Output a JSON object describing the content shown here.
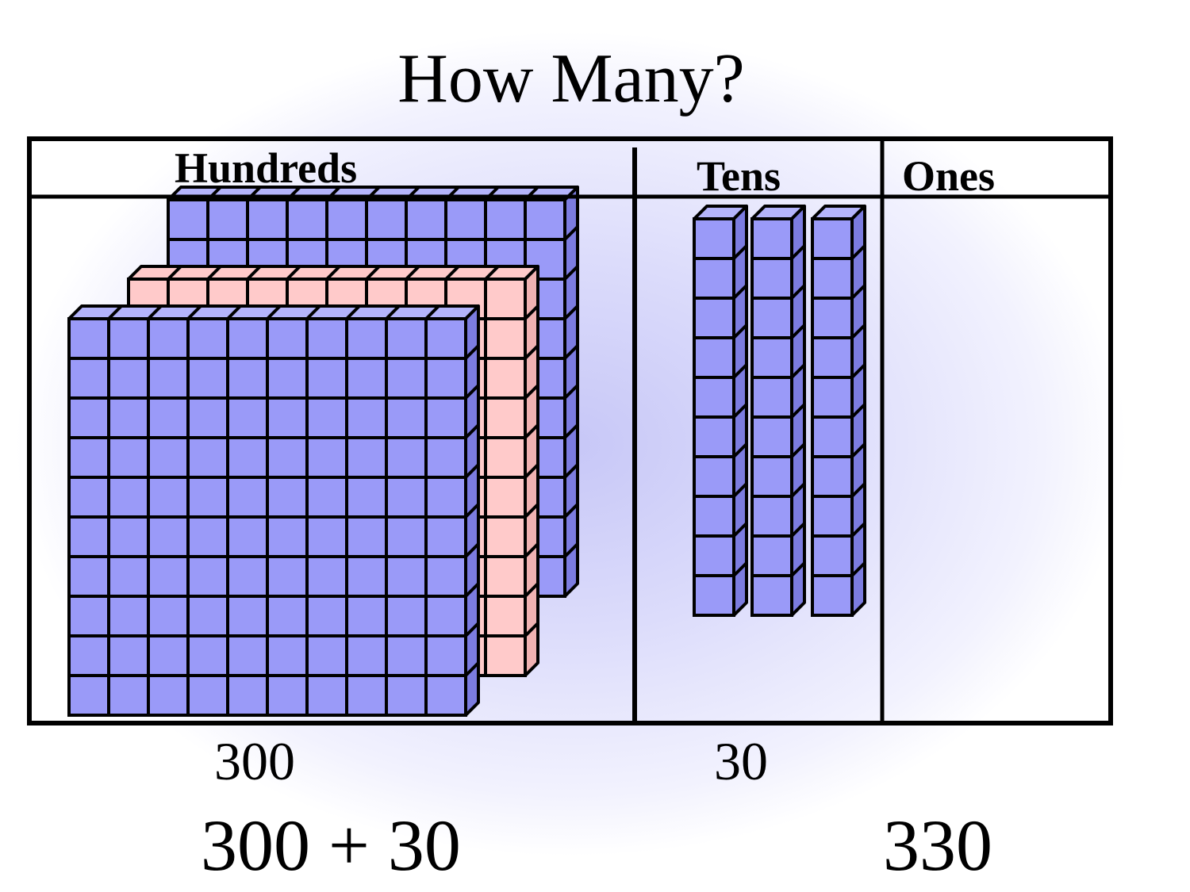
{
  "title": "How Many?",
  "columns": [
    {
      "label": "Hundreds",
      "count": 3,
      "value_text": "300"
    },
    {
      "label": "Tens",
      "count": 3,
      "value_text": "30"
    },
    {
      "label": "Ones",
      "count": 0,
      "value_text": ""
    }
  ],
  "expression": "300 + 30",
  "total": "330",
  "colors": {
    "block": "#9a9af8",
    "block_side": "#7c7ce0",
    "block_top": "#b4b4fb",
    "highlight_block": "#ffcaca",
    "highlight_side": "#f0b2b2",
    "outline": "#000000"
  }
}
